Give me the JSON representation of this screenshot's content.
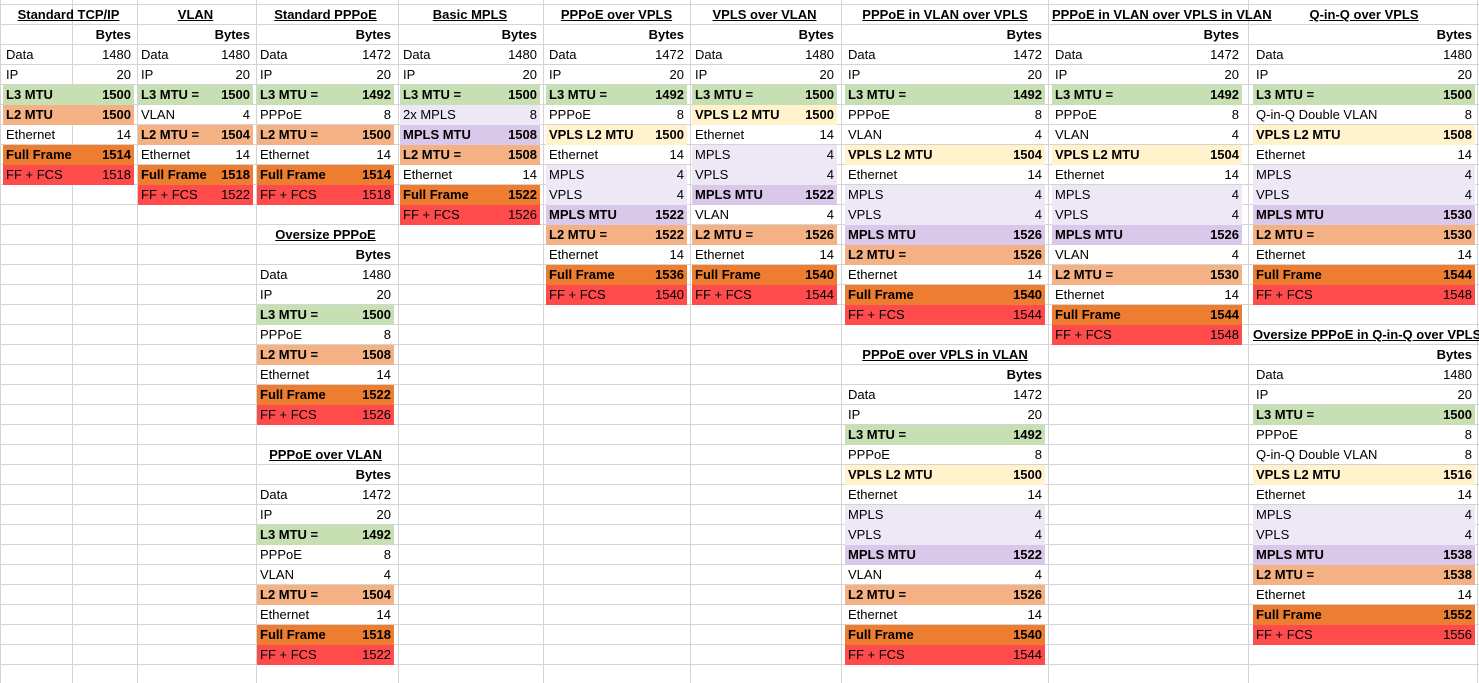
{
  "colors": {
    "l3": "#c6e0b4",
    "l2": "#f4b183",
    "full": "#ed7d31",
    "fcs": "#ff4b4b",
    "vpls": "#fff2cc",
    "mpls_light": "#ede7f6",
    "mpls_mtu": "#d9c8ea"
  },
  "bytes_label": "Bytes",
  "tables": [
    {
      "title": "Standard TCP/IP",
      "rows": [
        {
          "label": "Data",
          "value": "1480",
          "style": ""
        },
        {
          "label": "IP",
          "value": "20",
          "style": ""
        },
        {
          "label": "L3 MTU",
          "value": "1500",
          "style": "l3"
        },
        {
          "label": "L2 MTU",
          "value": "1500",
          "style": "l2"
        },
        {
          "label": "Ethernet",
          "value": "14",
          "style": ""
        },
        {
          "label": "Full Frame",
          "value": "1514",
          "style": "full"
        },
        {
          "label": "FF + FCS",
          "value": "1518",
          "style": "fcs"
        }
      ]
    },
    {
      "title": "VLAN",
      "rows": [
        {
          "label": "Data",
          "value": "1480",
          "style": ""
        },
        {
          "label": "IP",
          "value": "20",
          "style": ""
        },
        {
          "label": "L3 MTU =",
          "value": "1500",
          "style": "l3"
        },
        {
          "label": "VLAN",
          "value": "4",
          "style": ""
        },
        {
          "label": "L2 MTU =",
          "value": "1504",
          "style": "l2"
        },
        {
          "label": "Ethernet",
          "value": "14",
          "style": ""
        },
        {
          "label": "Full Frame",
          "value": "1518",
          "style": "full"
        },
        {
          "label": "FF + FCS",
          "value": "1522",
          "style": "fcs"
        }
      ]
    },
    {
      "title": "Standard PPPoE",
      "rows": [
        {
          "label": "Data",
          "value": "1472",
          "style": ""
        },
        {
          "label": "IP",
          "value": "20",
          "style": ""
        },
        {
          "label": "L3 MTU =",
          "value": "1492",
          "style": "l3"
        },
        {
          "label": "PPPoE",
          "value": "8",
          "style": ""
        },
        {
          "label": "L2 MTU =",
          "value": "1500",
          "style": "l2"
        },
        {
          "label": "Ethernet",
          "value": "14",
          "style": ""
        },
        {
          "label": "Full Frame",
          "value": "1514",
          "style": "full"
        },
        {
          "label": "FF + FCS",
          "value": "1518",
          "style": "fcs"
        }
      ]
    },
    {
      "title": "Oversize PPPoE",
      "rows": [
        {
          "label": "Data",
          "value": "1480",
          "style": ""
        },
        {
          "label": "IP",
          "value": "20",
          "style": ""
        },
        {
          "label": "L3 MTU =",
          "value": "1500",
          "style": "l3"
        },
        {
          "label": "PPPoE",
          "value": "8",
          "style": ""
        },
        {
          "label": "L2 MTU =",
          "value": "1508",
          "style": "l2"
        },
        {
          "label": "Ethernet",
          "value": "14",
          "style": ""
        },
        {
          "label": "Full Frame",
          "value": "1522",
          "style": "full"
        },
        {
          "label": "FF + FCS",
          "value": "1526",
          "style": "fcs"
        }
      ]
    },
    {
      "title": "PPPoE over VLAN",
      "rows": [
        {
          "label": "Data",
          "value": "1472",
          "style": ""
        },
        {
          "label": "IP",
          "value": "20",
          "style": ""
        },
        {
          "label": "L3 MTU =",
          "value": "1492",
          "style": "l3"
        },
        {
          "label": "PPPoE",
          "value": "8",
          "style": ""
        },
        {
          "label": "VLAN",
          "value": "4",
          "style": ""
        },
        {
          "label": "L2 MTU =",
          "value": "1504",
          "style": "l2"
        },
        {
          "label": "Ethernet",
          "value": "14",
          "style": ""
        },
        {
          "label": "Full Frame",
          "value": "1518",
          "style": "full"
        },
        {
          "label": "FF + FCS",
          "value": "1522",
          "style": "fcs"
        }
      ]
    },
    {
      "title": "Basic MPLS",
      "rows": [
        {
          "label": "Data",
          "value": "1480",
          "style": ""
        },
        {
          "label": "IP",
          "value": "20",
          "style": ""
        },
        {
          "label": "L3 MTU =",
          "value": "1500",
          "style": "l3"
        },
        {
          "label": "2x MPLS",
          "value": "8",
          "style": "mpls_light"
        },
        {
          "label": "MPLS MTU",
          "value": "1508",
          "style": "mpls_mtu"
        },
        {
          "label": "L2 MTU =",
          "value": "1508",
          "style": "l2"
        },
        {
          "label": "Ethernet",
          "value": "14",
          "style": ""
        },
        {
          "label": "Full Frame",
          "value": "1522",
          "style": "full"
        },
        {
          "label": "FF + FCS",
          "value": "1526",
          "style": "fcs"
        }
      ]
    },
    {
      "title": "PPPoE over VPLS",
      "rows": [
        {
          "label": "Data",
          "value": "1472",
          "style": ""
        },
        {
          "label": "IP",
          "value": "20",
          "style": ""
        },
        {
          "label": "L3 MTU =",
          "value": "1492",
          "style": "l3"
        },
        {
          "label": "PPPoE",
          "value": "8",
          "style": ""
        },
        {
          "label": "VPLS L2 MTU",
          "value": "1500",
          "style": "vpls"
        },
        {
          "label": "Ethernet",
          "value": "14",
          "style": ""
        },
        {
          "label": "MPLS",
          "value": "4",
          "style": "mpls_light"
        },
        {
          "label": "VPLS",
          "value": "4",
          "style": "mpls_light"
        },
        {
          "label": "MPLS MTU",
          "value": "1522",
          "style": "mpls_mtu"
        },
        {
          "label": "L2 MTU =",
          "value": "1522",
          "style": "l2"
        },
        {
          "label": "Ethernet",
          "value": "14",
          "style": ""
        },
        {
          "label": "Full Frame",
          "value": "1536",
          "style": "full"
        },
        {
          "label": "FF + FCS",
          "value": "1540",
          "style": "fcs"
        }
      ]
    },
    {
      "title": "VPLS over VLAN",
      "rows": [
        {
          "label": "Data",
          "value": "1480",
          "style": ""
        },
        {
          "label": "IP",
          "value": "20",
          "style": ""
        },
        {
          "label": "L3 MTU =",
          "value": "1500",
          "style": "l3"
        },
        {
          "label": "VPLS L2 MTU",
          "value": "1500",
          "style": "vpls"
        },
        {
          "label": "Ethernet",
          "value": "14",
          "style": ""
        },
        {
          "label": "MPLS",
          "value": "4",
          "style": "mpls_light"
        },
        {
          "label": "VPLS",
          "value": "4",
          "style": "mpls_light"
        },
        {
          "label": "MPLS MTU",
          "value": "1522",
          "style": "mpls_mtu"
        },
        {
          "label": "VLAN",
          "value": "4",
          "style": ""
        },
        {
          "label": "L2 MTU =",
          "value": "1526",
          "style": "l2"
        },
        {
          "label": "Ethernet",
          "value": "14",
          "style": ""
        },
        {
          "label": "Full Frame",
          "value": "1540",
          "style": "full"
        },
        {
          "label": "FF + FCS",
          "value": "1544",
          "style": "fcs"
        }
      ]
    },
    {
      "title": "PPPoE in VLAN over VPLS",
      "rows": [
        {
          "label": "Data",
          "value": "1472",
          "style": ""
        },
        {
          "label": "IP",
          "value": "20",
          "style": ""
        },
        {
          "label": "L3 MTU =",
          "value": "1492",
          "style": "l3"
        },
        {
          "label": "PPPoE",
          "value": "8",
          "style": ""
        },
        {
          "label": "VLAN",
          "value": "4",
          "style": ""
        },
        {
          "label": "VPLS L2 MTU",
          "value": "1504",
          "style": "vpls"
        },
        {
          "label": "Ethernet",
          "value": "14",
          "style": ""
        },
        {
          "label": "MPLS",
          "value": "4",
          "style": "mpls_light"
        },
        {
          "label": "VPLS",
          "value": "4",
          "style": "mpls_light"
        },
        {
          "label": "MPLS MTU",
          "value": "1526",
          "style": "mpls_mtu"
        },
        {
          "label": "L2 MTU =",
          "value": "1526",
          "style": "l2"
        },
        {
          "label": "Ethernet",
          "value": "14",
          "style": ""
        },
        {
          "label": "Full Frame",
          "value": "1540",
          "style": "full"
        },
        {
          "label": "FF + FCS",
          "value": "1544",
          "style": "fcs"
        }
      ]
    },
    {
      "title": "PPPoE over VPLS in VLAN",
      "rows": [
        {
          "label": "Data",
          "value": "1472",
          "style": ""
        },
        {
          "label": "IP",
          "value": "20",
          "style": ""
        },
        {
          "label": "L3 MTU =",
          "value": "1492",
          "style": "l3"
        },
        {
          "label": "PPPoE",
          "value": "8",
          "style": ""
        },
        {
          "label": "VPLS L2 MTU",
          "value": "1500",
          "style": "vpls"
        },
        {
          "label": "Ethernet",
          "value": "14",
          "style": ""
        },
        {
          "label": "MPLS",
          "value": "4",
          "style": "mpls_light"
        },
        {
          "label": "VPLS",
          "value": "4",
          "style": "mpls_light"
        },
        {
          "label": "MPLS MTU",
          "value": "1522",
          "style": "mpls_mtu"
        },
        {
          "label": "VLAN",
          "value": "4",
          "style": ""
        },
        {
          "label": "L2 MTU =",
          "value": "1526",
          "style": "l2"
        },
        {
          "label": "Ethernet",
          "value": "14",
          "style": ""
        },
        {
          "label": "Full Frame",
          "value": "1540",
          "style": "full"
        },
        {
          "label": "FF + FCS",
          "value": "1544",
          "style": "fcs"
        }
      ]
    },
    {
      "title": "PPPoE in VLAN over VPLS in VLAN",
      "rows": [
        {
          "label": "Data",
          "value": "1472",
          "style": ""
        },
        {
          "label": "IP",
          "value": "20",
          "style": ""
        },
        {
          "label": "L3 MTU =",
          "value": "1492",
          "style": "l3"
        },
        {
          "label": "PPPoE",
          "value": "8",
          "style": ""
        },
        {
          "label": "VLAN",
          "value": "4",
          "style": ""
        },
        {
          "label": "VPLS L2 MTU",
          "value": "1504",
          "style": "vpls"
        },
        {
          "label": "Ethernet",
          "value": "14",
          "style": ""
        },
        {
          "label": "MPLS",
          "value": "4",
          "style": "mpls_light"
        },
        {
          "label": "VPLS",
          "value": "4",
          "style": "mpls_light"
        },
        {
          "label": "MPLS MTU",
          "value": "1526",
          "style": "mpls_mtu"
        },
        {
          "label": "VLAN",
          "value": "4",
          "style": ""
        },
        {
          "label": "L2 MTU =",
          "value": "1530",
          "style": "l2"
        },
        {
          "label": "Ethernet",
          "value": "14",
          "style": ""
        },
        {
          "label": "Full Frame",
          "value": "1544",
          "style": "full"
        },
        {
          "label": "FF + FCS",
          "value": "1548",
          "style": "fcs"
        }
      ]
    },
    {
      "title": "Q-in-Q over VPLS",
      "rows": [
        {
          "label": "Data",
          "value": "1480",
          "style": ""
        },
        {
          "label": "IP",
          "value": "20",
          "style": ""
        },
        {
          "label": "L3 MTU =",
          "value": "1500",
          "style": "l3"
        },
        {
          "label": "Q-in-Q Double VLAN",
          "value": "8",
          "style": ""
        },
        {
          "label": "VPLS L2 MTU",
          "value": "1508",
          "style": "vpls"
        },
        {
          "label": "Ethernet",
          "value": "14",
          "style": ""
        },
        {
          "label": "MPLS",
          "value": "4",
          "style": "mpls_light"
        },
        {
          "label": "VPLS",
          "value": "4",
          "style": "mpls_light"
        },
        {
          "label": "MPLS MTU",
          "value": "1530",
          "style": "mpls_mtu"
        },
        {
          "label": "L2 MTU =",
          "value": "1530",
          "style": "l2"
        },
        {
          "label": "Ethernet",
          "value": "14",
          "style": ""
        },
        {
          "label": "Full Frame",
          "value": "1544",
          "style": "full"
        },
        {
          "label": "FF + FCS",
          "value": "1548",
          "style": "fcs"
        }
      ]
    },
    {
      "title": "Oversize PPPoE in Q-in-Q over VPLS",
      "rows": [
        {
          "label": "Data",
          "value": "1480",
          "style": ""
        },
        {
          "label": "IP",
          "value": "20",
          "style": ""
        },
        {
          "label": "L3 MTU =",
          "value": "1500",
          "style": "l3"
        },
        {
          "label": "PPPoE",
          "value": "8",
          "style": ""
        },
        {
          "label": "Q-in-Q Double VLAN",
          "value": "8",
          "style": ""
        },
        {
          "label": "VPLS L2 MTU",
          "value": "1516",
          "style": "vpls"
        },
        {
          "label": "Ethernet",
          "value": "14",
          "style": ""
        },
        {
          "label": "MPLS",
          "value": "4",
          "style": "mpls_light"
        },
        {
          "label": "VPLS",
          "value": "4",
          "style": "mpls_light"
        },
        {
          "label": "MPLS MTU",
          "value": "1538",
          "style": "mpls_mtu"
        },
        {
          "label": "L2 MTU =",
          "value": "1538",
          "style": "l2"
        },
        {
          "label": "Ethernet",
          "value": "14",
          "style": ""
        },
        {
          "label": "Full Frame",
          "value": "1552",
          "style": "full"
        },
        {
          "label": "FF + FCS",
          "value": "1556",
          "style": "fcs"
        }
      ]
    }
  ]
}
